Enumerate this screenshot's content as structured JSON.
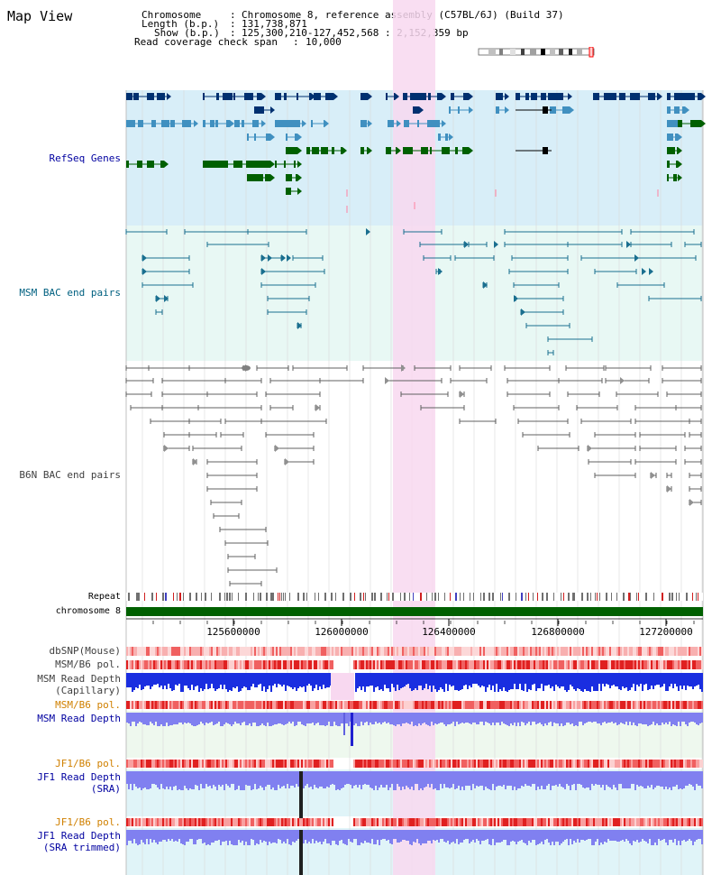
{
  "page": {
    "title": "Map View"
  },
  "info": {
    "chromosome_key": "Chromosome",
    "chromosome_value": "Chromosome 8, reference assembly (C57BL/6J) (Build 37)",
    "length_key": "Length (b.p.)",
    "length_value": "131,738,871",
    "show_key": "Show (b.p.)",
    "show_value": "125,300,210-127,452,568 : 2,152,359 bp",
    "coverage_key": "Read coverage check span",
    "coverage_value": "10,000"
  },
  "tracks": {
    "refseq": "RefSeq Genes",
    "msm_bac": "MSM BAC end pairs",
    "b6n_bac": "B6N BAC end pairs",
    "repeat": "Repeat",
    "chromosome": "chromosome 8",
    "dbsnp": "dbSNP(Mouse)",
    "msm_b6_pol": "MSM/B6 pol.",
    "msm_depth_cap_1": "MSM Read Depth",
    "msm_depth_cap_2": "(Capillary)",
    "msm_b6_pol2": "MSM/B6 pol.",
    "msm_depth_sra": "MSM Read Depth",
    "jf1_b6_pol": "JF1/B6 pol.",
    "jf1_depth_1": "JF1 Read Depth",
    "jf1_depth_2": "(SRA)",
    "jf1_b6_pol2": "JF1/B6 pol.",
    "jf1_depth_trim_1": "JF1 Read Depth",
    "jf1_depth_trim_2": "(SRA trimmed)"
  },
  "axis": {
    "ticks": [
      "125600000",
      "126000000",
      "126400000",
      "126800000",
      "127200000"
    ]
  },
  "colors": {
    "dark_blue_label": "#0000a0",
    "teal_label": "#006080",
    "orange_label": "#d08000",
    "highlight": "#f8d8f0",
    "gene_navy": "#003070",
    "gene_steel": "#4090c0",
    "gene_green": "#006000"
  }
}
